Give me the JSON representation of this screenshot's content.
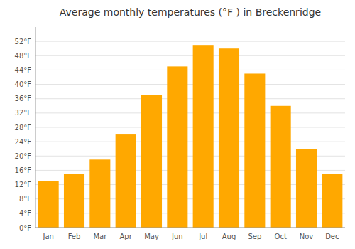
{
  "chart_data": {
    "type": "bar",
    "title": "Average monthly temperatures (°F ) in Breckenridge",
    "categories": [
      "Jan",
      "Feb",
      "Mar",
      "Apr",
      "May",
      "Jun",
      "Jul",
      "Aug",
      "Sep",
      "Oct",
      "Nov",
      "Dec"
    ],
    "values": [
      13,
      15,
      19,
      26,
      37,
      45,
      51,
      50,
      43,
      34,
      22,
      15
    ],
    "color": "#FFA800",
    "ylim": [
      0,
      56
    ],
    "yticks": [
      {
        "value": 0,
        "label": "0°F"
      },
      {
        "value": 4,
        "label": "4°F"
      },
      {
        "value": 8,
        "label": "8°F"
      },
      {
        "value": 12,
        "label": "12°F"
      },
      {
        "value": 16,
        "label": "16°F"
      },
      {
        "value": 20,
        "label": "20°F"
      },
      {
        "value": 24,
        "label": "24°F"
      },
      {
        "value": 28,
        "label": "28°F"
      },
      {
        "value": 32,
        "label": "32°F"
      },
      {
        "value": 36,
        "label": "36°F"
      },
      {
        "value": 40,
        "label": "40°F"
      },
      {
        "value": 44,
        "label": "44°F"
      },
      {
        "value": 48,
        "label": "48°F"
      },
      {
        "value": 52,
        "label": "52°F"
      }
    ],
    "grid": true
  }
}
